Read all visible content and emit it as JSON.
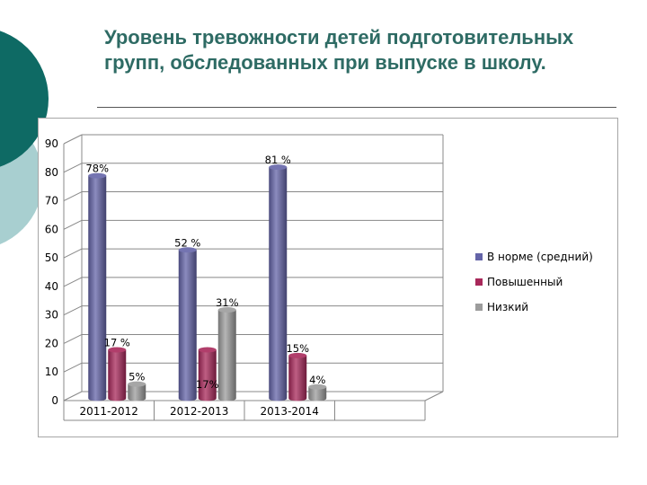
{
  "slide": {
    "title": "Уровень тревожности детей подготовительных групп, обследованных при выпуске в школу."
  },
  "colors": {
    "title": "#2e6b64",
    "decor_dark": "#0e6a64",
    "decor_light": "#a8cfd0",
    "series": [
      "#6464a8",
      "#a8285a",
      "#9c9c9c"
    ]
  },
  "chart_data": {
    "type": "bar",
    "style": "3d-cylinder",
    "categories": [
      "2011-2012",
      "2012-2013",
      "2013-2014"
    ],
    "series": [
      {
        "name": "В норме (средний)",
        "values": [
          78,
          52,
          81
        ],
        "labels": [
          "78%",
          "52 %",
          "81 %"
        ]
      },
      {
        "name": "Повышенный",
        "values": [
          17,
          17,
          15
        ],
        "labels": [
          "17 %",
          "17%",
          "15%"
        ]
      },
      {
        "name": "Низкий",
        "values": [
          5,
          31,
          4
        ],
        "labels": [
          "5%",
          "31%",
          "4%"
        ]
      }
    ],
    "ylim": [
      0,
      90
    ],
    "yticks": [
      0,
      10,
      20,
      30,
      40,
      50,
      60,
      70,
      80,
      90
    ],
    "grid": true,
    "legend": "right"
  }
}
